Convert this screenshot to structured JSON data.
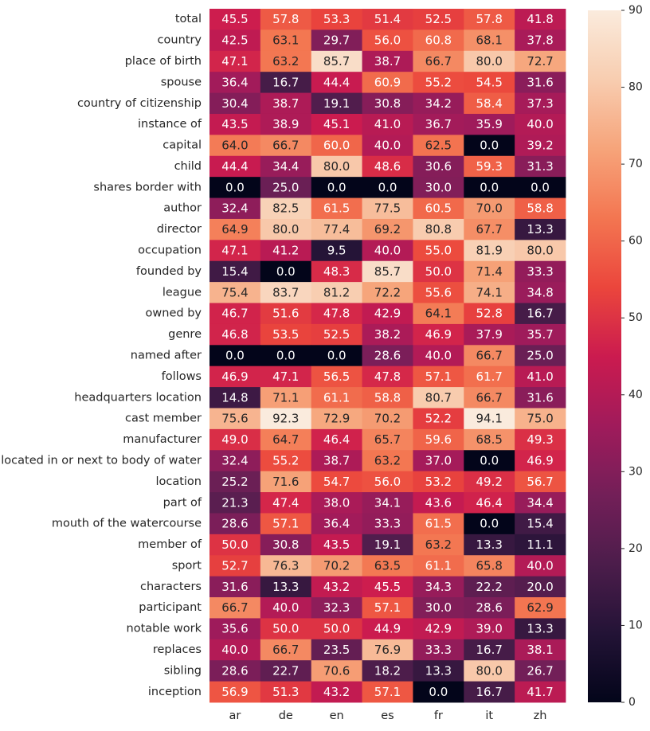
{
  "chart_data": {
    "type": "heatmap",
    "title": "",
    "xlabel": "",
    "ylabel": "",
    "columns": [
      "ar",
      "de",
      "en",
      "es",
      "fr",
      "it",
      "zh"
    ],
    "rows": [
      "total",
      "country",
      "place of birth",
      "spouse",
      "country of citizenship",
      "instance of",
      "capital",
      "child",
      "shares border with",
      "author",
      "director",
      "occupation",
      "founded by",
      "league",
      "owned by",
      "genre",
      "named after",
      "follows",
      "headquarters location",
      "cast member",
      "manufacturer",
      "located in or next to body of water",
      "location",
      "part of",
      "mouth of the watercourse",
      "member of",
      "sport",
      "characters",
      "participant",
      "notable work",
      "replaces",
      "sibling",
      "inception"
    ],
    "values": [
      [
        45.5,
        57.8,
        53.3,
        51.4,
        52.5,
        57.8,
        41.8
      ],
      [
        42.5,
        63.1,
        29.7,
        56.0,
        60.8,
        68.1,
        37.8
      ],
      [
        47.1,
        63.2,
        85.7,
        38.7,
        66.7,
        80.0,
        72.7
      ],
      [
        36.4,
        16.7,
        44.4,
        60.9,
        55.2,
        54.5,
        31.6
      ],
      [
        30.4,
        38.7,
        19.1,
        30.8,
        34.2,
        58.4,
        37.3
      ],
      [
        43.5,
        38.9,
        45.1,
        41.0,
        36.7,
        35.9,
        40.0
      ],
      [
        64.0,
        66.7,
        60.0,
        40.0,
        62.5,
        0.0,
        39.2
      ],
      [
        44.4,
        34.4,
        80.0,
        48.6,
        30.6,
        59.3,
        31.3
      ],
      [
        0.0,
        25.0,
        0.0,
        0.0,
        30.0,
        0.0,
        0.0
      ],
      [
        32.4,
        82.5,
        61.5,
        77.5,
        60.5,
        70.0,
        58.8
      ],
      [
        64.9,
        80.0,
        77.4,
        69.2,
        80.8,
        67.7,
        13.3
      ],
      [
        47.1,
        41.2,
        9.5,
        40.0,
        55.0,
        81.9,
        80.0
      ],
      [
        15.4,
        0.0,
        48.3,
        85.7,
        50.0,
        71.4,
        33.3
      ],
      [
        75.4,
        83.7,
        81.2,
        72.2,
        55.6,
        74.1,
        34.8
      ],
      [
        46.7,
        51.6,
        47.8,
        42.9,
        64.1,
        52.8,
        16.7
      ],
      [
        46.8,
        53.5,
        52.5,
        38.2,
        46.9,
        37.9,
        35.7
      ],
      [
        0.0,
        0.0,
        0.0,
        28.6,
        40.0,
        66.7,
        25.0
      ],
      [
        46.9,
        47.1,
        56.5,
        47.8,
        57.1,
        61.7,
        41.0
      ],
      [
        14.8,
        71.1,
        61.1,
        58.8,
        80.7,
        66.7,
        31.6
      ],
      [
        75.6,
        92.3,
        72.9,
        70.2,
        52.2,
        94.1,
        75.0
      ],
      [
        49.0,
        64.7,
        46.4,
        65.7,
        59.6,
        68.5,
        49.3
      ],
      [
        32.4,
        55.2,
        38.7,
        63.2,
        37.0,
        0.0,
        46.9
      ],
      [
        25.2,
        71.6,
        54.7,
        56.0,
        53.2,
        49.2,
        56.7
      ],
      [
        21.3,
        47.4,
        38.0,
        34.1,
        43.6,
        46.4,
        34.4
      ],
      [
        28.6,
        57.1,
        36.4,
        33.3,
        61.5,
        0.0,
        15.4
      ],
      [
        50.0,
        30.8,
        43.5,
        19.1,
        63.2,
        13.3,
        11.1
      ],
      [
        52.7,
        76.3,
        70.2,
        63.5,
        61.1,
        65.8,
        40.0
      ],
      [
        31.6,
        13.3,
        43.2,
        45.5,
        34.3,
        22.2,
        20.0
      ],
      [
        66.7,
        40.0,
        32.3,
        57.1,
        30.0,
        28.6,
        62.9
      ],
      [
        35.6,
        50.0,
        50.0,
        44.9,
        42.9,
        39.0,
        13.3
      ],
      [
        40.0,
        66.7,
        23.5,
        76.9,
        33.3,
        16.7,
        38.1
      ],
      [
        28.6,
        22.7,
        70.6,
        18.2,
        13.3,
        80.0,
        26.7
      ],
      [
        56.9,
        51.3,
        43.2,
        57.1,
        0.0,
        16.7,
        41.7
      ]
    ],
    "value_format": "0.0",
    "colormap": "rocket",
    "vmin": 0,
    "vmax": 90,
    "colorbar_ticks": [
      0,
      10,
      20,
      30,
      40,
      50,
      60,
      70,
      80,
      90
    ],
    "colors": {
      "annotation_light": "#ffffff",
      "annotation_dark": "#262626",
      "tick_text": "#262626"
    }
  }
}
